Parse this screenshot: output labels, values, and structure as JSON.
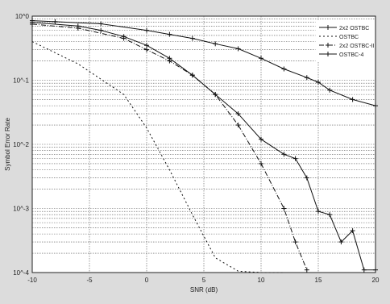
{
  "chart_data": {
    "type": "line",
    "xlabel": "SNR (dB)",
    "ylabel": "Symbol Error Rate",
    "xlim": [
      -10,
      20
    ],
    "ylim": [
      0.0001,
      1
    ],
    "yscale": "log",
    "grid": true,
    "legend_placement": "top-right",
    "x_ticks": [
      "-10",
      "-5",
      "0",
      "5",
      "10",
      "15",
      "20"
    ],
    "y_ticks": [
      "10^-4",
      "10^-3",
      "10^-2",
      "10^-1",
      "10^0"
    ],
    "series": [
      {
        "name": "2x2 OSTBC",
        "marker": "+",
        "x": [
          -10,
          -8,
          -4,
          0,
          2,
          4,
          6,
          8,
          10,
          12,
          14,
          15,
          16,
          18,
          20
        ],
        "y": [
          0.85,
          0.82,
          0.76,
          0.6,
          0.52,
          0.45,
          0.37,
          0.31,
          0.22,
          0.15,
          0.11,
          0.093,
          0.07,
          0.05,
          0.04
        ]
      },
      {
        "name": "OSTBC",
        "marker": "none",
        "x": [
          -10,
          -6,
          -2,
          0,
          2,
          4,
          6,
          8,
          10,
          12
        ],
        "y": [
          0.4,
          0.18,
          0.06,
          0.018,
          0.004,
          0.0008,
          0.00017,
          0.000105,
          0.0001,
          0.0001
        ]
      },
      {
        "name": "2x2 OSTBC-II",
        "marker": "+",
        "x": [
          -10,
          -6,
          -2,
          0,
          2,
          4,
          6,
          8,
          10,
          12,
          13,
          14
        ],
        "y": [
          0.75,
          0.65,
          0.45,
          0.3,
          0.2,
          0.12,
          0.06,
          0.02,
          0.005,
          0.001,
          0.0003,
          0.00011
        ]
      },
      {
        "name": "OSTBC-4",
        "marker": "+",
        "x": [
          -10,
          -6,
          -4,
          -2,
          0,
          2,
          4,
          6,
          8,
          10,
          12,
          13,
          14,
          15,
          16,
          17,
          18,
          19,
          20
        ],
        "y": [
          0.8,
          0.7,
          0.6,
          0.48,
          0.35,
          0.22,
          0.12,
          0.06,
          0.03,
          0.012,
          0.007,
          0.006,
          0.003,
          0.0009,
          0.0008,
          0.0003,
          0.00045,
          0.00011,
          0.00011
        ]
      }
    ]
  }
}
